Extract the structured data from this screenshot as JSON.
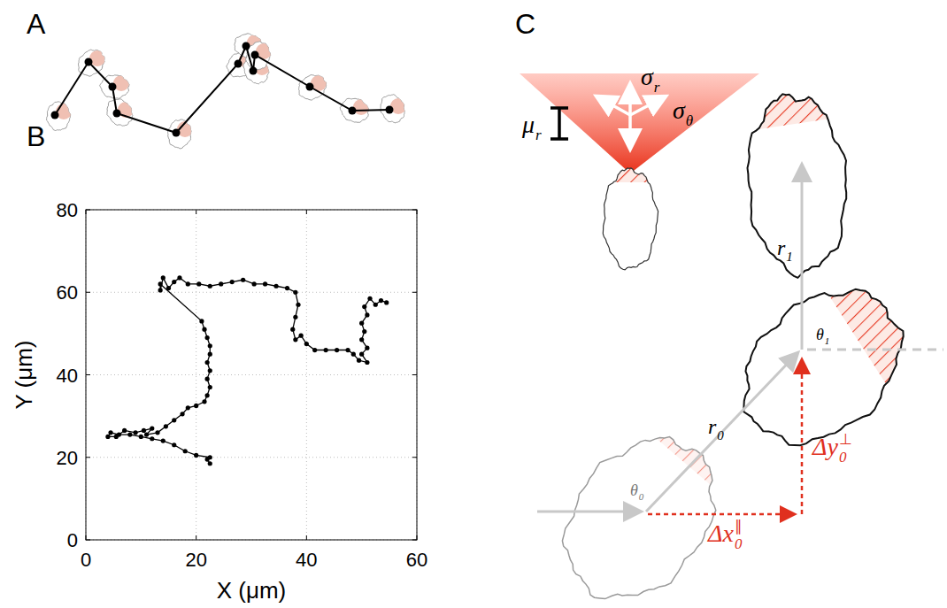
{
  "panel_labels": [
    "A",
    "B",
    "C"
  ],
  "chart_data": {
    "type": "line",
    "x_label": "X (μm)",
    "y_label": "Y (μm)",
    "x": [
      22.5,
      22,
      22.5,
      20,
      18,
      16,
      14,
      12,
      10,
      8,
      6,
      4.5,
      4,
      5.5,
      7,
      9,
      10.5,
      12,
      11,
      13,
      14.5,
      16,
      17.5,
      18.5,
      20,
      21.5,
      22,
      22.5,
      22,
      22.5,
      22,
      22.5,
      22.5,
      22,
      21.5,
      21,
      13.5,
      13.5,
      14,
      15,
      16,
      17,
      18.5,
      20.5,
      22.5,
      24.5,
      26.5,
      28.5,
      30.5,
      32.5,
      34.5,
      36.5,
      38,
      38.5,
      38,
      37.5,
      38,
      39,
      40,
      41.5,
      43.5,
      45.5,
      47.5,
      48.5,
      49.5,
      51,
      50,
      51,
      50,
      50.5,
      50,
      51,
      50.5,
      51.5,
      52.5,
      53.5,
      54.5
    ],
    "values": [
      18.5,
      19.5,
      20,
      20.5,
      21.5,
      23,
      24,
      24.5,
      25,
      25.5,
      25.5,
      26,
      25,
      25,
      26.5,
      26,
      26.5,
      27,
      25.5,
      26,
      27.5,
      29,
      30.5,
      32,
      32.5,
      33.5,
      35,
      37,
      39,
      41,
      43,
      45,
      47,
      49,
      51,
      53,
      62,
      60.5,
      63.5,
      61,
      62.5,
      63.5,
      62,
      62,
      61.5,
      62,
      62.5,
      63,
      62,
      62,
      61.5,
      61,
      60,
      57,
      54,
      51,
      48.5,
      49.5,
      47.5,
      46,
      46,
      46,
      46,
      45,
      43.5,
      43,
      45,
      46.5,
      48.5,
      50.5,
      52.5,
      54.5,
      56.5,
      58.5,
      57,
      58,
      57.5
    ],
    "color": "#000000",
    "marker": "circle",
    "line_style": "solid",
    "xlim": [
      0,
      60
    ],
    "ylim": [
      0,
      80
    ],
    "xticks": [
      0,
      20,
      40,
      60
    ],
    "yticks": [
      0,
      20,
      40,
      60,
      80
    ],
    "grid": true
  },
  "diagram_c": {
    "labels": [
      {
        "base": "σ",
        "sub": "r",
        "color": "#000000"
      },
      {
        "base": "σ",
        "sub": "θ",
        "color": "#000000"
      },
      {
        "base": "μ",
        "sub": "r",
        "color": "#000000"
      },
      {
        "base": "r",
        "sub": "1",
        "color": "#000000"
      },
      {
        "base": "θ",
        "sub": "1",
        "color": "#000000"
      },
      {
        "base": "r",
        "sub": "0",
        "color": "#000000"
      },
      {
        "base": "θ",
        "sub": "0",
        "color": "#777777"
      },
      {
        "base": "Δx",
        "sub": "0",
        "sup": "∥",
        "color": "#e0301e"
      },
      {
        "base": "Δy",
        "sub": "0",
        "sup": "⊥",
        "color": "#e0301e"
      }
    ]
  }
}
